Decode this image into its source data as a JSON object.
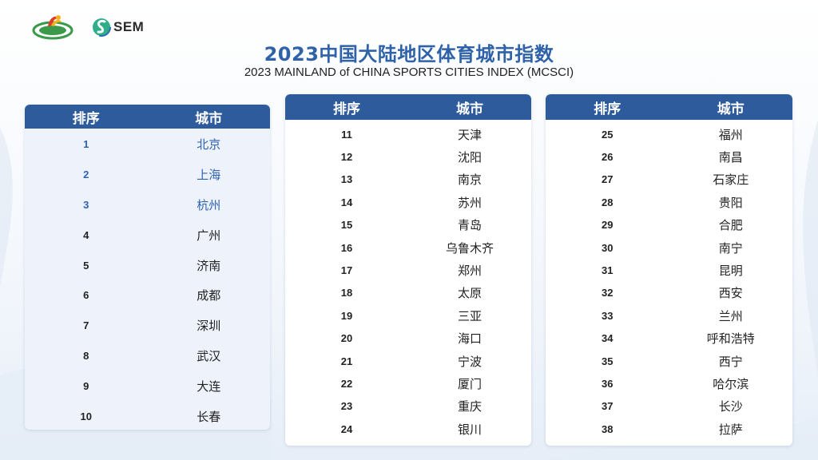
{
  "title_cn": "2023中国大陆地区体育城市指数",
  "title_en": "2023 MAINLAND of CHINA SPORTS CITIES INDEX (MCSCI)",
  "logos": {
    "sem_text": "SEM"
  },
  "colors": {
    "header": "#2d5b9c",
    "title": "#2f62a8",
    "top_rank_text": "#2d62b0"
  },
  "table_headers": {
    "rank": "排序",
    "city": "城市"
  },
  "panels": [
    {
      "rows": [
        {
          "rank": "1",
          "city": "北京"
        },
        {
          "rank": "2",
          "city": "上海"
        },
        {
          "rank": "3",
          "city": "杭州"
        },
        {
          "rank": "4",
          "city": "广州"
        },
        {
          "rank": "5",
          "city": "济南"
        },
        {
          "rank": "6",
          "city": "成都"
        },
        {
          "rank": "7",
          "city": "深圳"
        },
        {
          "rank": "8",
          "city": "武汉"
        },
        {
          "rank": "9",
          "city": "大连"
        },
        {
          "rank": "10",
          "city": "长春"
        }
      ]
    },
    {
      "rows": [
        {
          "rank": "11",
          "city": "天津"
        },
        {
          "rank": "12",
          "city": "沈阳"
        },
        {
          "rank": "13",
          "city": "南京"
        },
        {
          "rank": "14",
          "city": "苏州"
        },
        {
          "rank": "15",
          "city": "青岛"
        },
        {
          "rank": "16",
          "city": "乌鲁木齐"
        },
        {
          "rank": "17",
          "city": "郑州"
        },
        {
          "rank": "18",
          "city": "太原"
        },
        {
          "rank": "19",
          "city": "三亚"
        },
        {
          "rank": "20",
          "city": "海口"
        },
        {
          "rank": "21",
          "city": "宁波"
        },
        {
          "rank": "22",
          "city": "厦门"
        },
        {
          "rank": "23",
          "city": "重庆"
        },
        {
          "rank": "24",
          "city": "银川"
        }
      ]
    },
    {
      "rows": [
        {
          "rank": "25",
          "city": "福州"
        },
        {
          "rank": "26",
          "city": "南昌"
        },
        {
          "rank": "27",
          "city": "石家庄"
        },
        {
          "rank": "28",
          "city": "贵阳"
        },
        {
          "rank": "29",
          "city": "合肥"
        },
        {
          "rank": "30",
          "city": "南宁"
        },
        {
          "rank": "31",
          "city": "昆明"
        },
        {
          "rank": "32",
          "city": "西安"
        },
        {
          "rank": "33",
          "city": "兰州"
        },
        {
          "rank": "34",
          "city": "呼和浩特"
        },
        {
          "rank": "35",
          "city": "西宁"
        },
        {
          "rank": "36",
          "city": "哈尔滨"
        },
        {
          "rank": "37",
          "city": "长沙"
        },
        {
          "rank": "38",
          "city": "拉萨"
        }
      ]
    }
  ]
}
